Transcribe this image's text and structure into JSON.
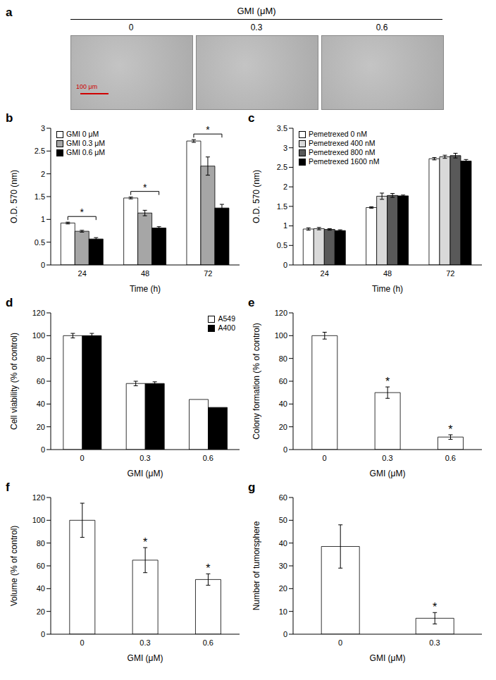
{
  "image_panel": {
    "panel": "a",
    "title": "GMI (μM)",
    "labels": [
      "0",
      "0.3",
      "0.6"
    ],
    "scale_bar": "100 μm"
  },
  "chart_data": [
    {
      "panel": "b",
      "type": "bar",
      "categories": [
        "24",
        "48",
        "72"
      ],
      "x_label": "Time (h)",
      "y_label": "O.D. 570 (nm)",
      "ylim": [
        0,
        3
      ],
      "yticks": [
        0,
        0.5,
        1,
        1.5,
        2,
        2.5,
        3
      ],
      "legend": "upper left",
      "series": [
        {
          "name": "GMI 0 μM",
          "color": "#ffffff",
          "values": [
            0.92,
            1.47,
            2.72
          ],
          "errors": [
            0.02,
            0.02,
            0.03
          ]
        },
        {
          "name": "GMI 0.3 μM",
          "color": "#a6a6a6",
          "values": [
            0.74,
            1.14,
            2.17
          ],
          "errors": [
            0.02,
            0.06,
            0.2
          ]
        },
        {
          "name": "GMI 0.6 μM",
          "color": "#000000",
          "values": [
            0.57,
            0.81,
            1.25
          ],
          "errors": [
            0.03,
            0.03,
            0.08
          ]
        }
      ],
      "significance": [
        {
          "category": "24",
          "from": "GMI 0 μM",
          "to": "GMI 0.6 μM",
          "label": "*"
        },
        {
          "category": "48",
          "from": "GMI 0 μM",
          "to": "GMI 0.6 μM",
          "label": "*"
        },
        {
          "category": "72",
          "from": "GMI 0 μM",
          "to": "GMI 0.6 μM",
          "label": "*"
        }
      ]
    },
    {
      "panel": "c",
      "type": "bar",
      "categories": [
        "24",
        "48",
        "72"
      ],
      "x_label": "Time (h)",
      "y_label": "O.D. 570 (nm)",
      "ylim": [
        0,
        3.5
      ],
      "yticks": [
        0,
        0.5,
        1,
        1.5,
        2,
        2.5,
        3,
        3.5
      ],
      "legend": "upper left",
      "series": [
        {
          "name": "Pemetrexed 0 nM",
          "color": "#ffffff",
          "values": [
            0.92,
            1.47,
            2.72
          ],
          "errors": [
            0.03,
            0.02,
            0.03
          ]
        },
        {
          "name": "Pemetrexed 400 nM",
          "color": "#d9d9d9",
          "values": [
            0.93,
            1.76,
            2.77
          ],
          "errors": [
            0.03,
            0.08,
            0.04
          ]
        },
        {
          "name": "Pemetrexed 800 nM",
          "color": "#595959",
          "values": [
            0.91,
            1.78,
            2.8
          ],
          "errors": [
            0.02,
            0.05,
            0.06
          ]
        },
        {
          "name": "Pemetrexed 1600 nM",
          "color": "#000000",
          "values": [
            0.88,
            1.77,
            2.66
          ],
          "errors": [
            0.02,
            0.02,
            0.04
          ]
        }
      ]
    },
    {
      "panel": "d",
      "type": "bar",
      "categories": [
        "0",
        "0.3",
        "0.6"
      ],
      "x_label": "GMI (μM)",
      "y_label": "Cell viability (% of control)",
      "ylim": [
        0,
        120
      ],
      "yticks": [
        0,
        20,
        40,
        60,
        80,
        100,
        120
      ],
      "legend": "upper right",
      "series": [
        {
          "name": "A549",
          "color": "#ffffff",
          "values": [
            100,
            58,
            44
          ],
          "errors": [
            2,
            2,
            0
          ]
        },
        {
          "name": "A400",
          "color": "#000000",
          "values": [
            100,
            58,
            37
          ],
          "errors": [
            2,
            1.5,
            0
          ]
        }
      ]
    },
    {
      "panel": "e",
      "type": "bar",
      "categories": [
        "0",
        "0.3",
        "0.6"
      ],
      "x_label": "GMI (μM)",
      "y_label": "Colony formation (% of control)",
      "ylim": [
        0,
        120
      ],
      "yticks": [
        0,
        20,
        40,
        60,
        80,
        100,
        120
      ],
      "color": "#ffffff",
      "values": [
        100,
        50,
        11
      ],
      "errors": [
        3,
        5,
        2
      ],
      "significance": [
        {
          "category": "0.3",
          "label": "*"
        },
        {
          "category": "0.6",
          "label": "*"
        }
      ]
    },
    {
      "panel": "f",
      "type": "bar",
      "categories": [
        "0",
        "0.3",
        "0.6"
      ],
      "x_label": "GMI (μM)",
      "y_label": "Volume (% of control)",
      "ylim": [
        0,
        120
      ],
      "yticks": [
        0,
        20,
        40,
        60,
        80,
        100,
        120
      ],
      "color": "#ffffff",
      "values": [
        100,
        65,
        48
      ],
      "errors": [
        15,
        11,
        5
      ],
      "significance": [
        {
          "category": "0.3",
          "label": "*"
        },
        {
          "category": "0.6",
          "label": "*"
        }
      ]
    },
    {
      "panel": "g",
      "type": "bar",
      "categories": [
        "0",
        "0.3"
      ],
      "x_label": "GMI (μM)",
      "y_label": "Number of tumorsphere",
      "ylim": [
        0,
        60
      ],
      "yticks": [
        0,
        10,
        20,
        30,
        40,
        50,
        60
      ],
      "color": "#ffffff",
      "values": [
        38.5,
        7
      ],
      "errors": [
        9.5,
        2.5
      ],
      "significance": [
        {
          "category": "0.3",
          "label": "*"
        }
      ]
    }
  ]
}
